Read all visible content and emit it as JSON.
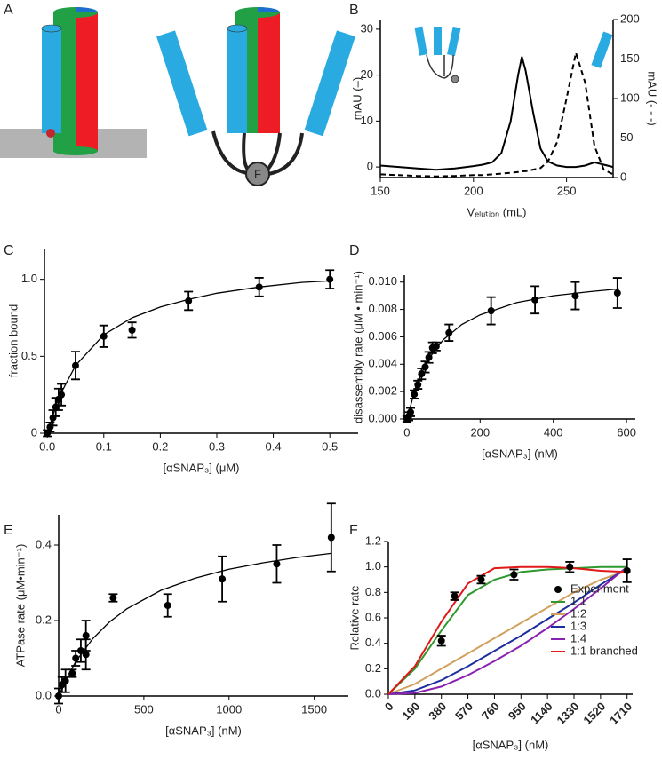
{
  "diagram": {
    "panel_label": "A",
    "node_label": "F"
  },
  "chart_data": [
    {
      "type": "line",
      "panel_label": "B",
      "x_label": "Vₑₗᵤₜᵢₒₙ (mL)",
      "y_label": "mAU (–)",
      "y2_label": "mAU (- - -)",
      "x": [
        150,
        160,
        170,
        180,
        190,
        200,
        205,
        210,
        215,
        220,
        224,
        226,
        228,
        232,
        236,
        240,
        245,
        250,
        255,
        260,
        265,
        270,
        275
      ],
      "series": [
        {
          "color": "#000",
          "values": [
            0.3,
            0,
            -0.3,
            -0.6,
            -0.3,
            0.2,
            0.5,
            1,
            3,
            10,
            20,
            24,
            21,
            12,
            4,
            1.2,
            0.3,
            0,
            0,
            0.3,
            1,
            0.5,
            0
          ]
        },
        {
          "color": "#000",
          "axis": "y2",
          "dashed": true,
          "values": [
            4,
            3,
            2,
            1.5,
            2,
            3,
            3,
            4,
            5,
            6,
            7,
            8,
            8,
            10,
            12,
            20,
            45,
            100,
            158,
            120,
            40,
            10,
            4
          ]
        }
      ],
      "xlim": [
        150,
        275
      ],
      "xticks": [
        150,
        200,
        250
      ],
      "ylim": [
        -2.3,
        32.1
      ],
      "yticks": [
        0,
        10,
        20,
        30
      ],
      "y2lim": [
        0,
        200
      ],
      "y2ticks": [
        0,
        50,
        100,
        150,
        200
      ]
    },
    {
      "type": "scatter",
      "panel_label": "C",
      "x_label": "[αSNAP₃] (μM)",
      "y_label": "fraction bound",
      "points": {
        "color": "#000",
        "x": [
          0,
          0.005,
          0.01,
          0.015,
          0.02,
          0.025,
          0.05,
          0.1,
          0.15,
          0.25,
          0.375,
          0.5
        ],
        "y": [
          0,
          0.04,
          0.1,
          0.17,
          0.22,
          0.25,
          0.44,
          0.63,
          0.67,
          0.86,
          0.95,
          1.0
        ],
        "err": [
          0.02,
          0.03,
          0.05,
          0.06,
          0.07,
          0.07,
          0.09,
          0.07,
          0.05,
          0.06,
          0.06,
          0.06
        ]
      },
      "fit": {
        "color": "#000",
        "x": [
          0,
          0.02,
          0.05,
          0.1,
          0.15,
          0.2,
          0.25,
          0.3,
          0.375,
          0.45,
          0.5
        ],
        "y": [
          0,
          0.23,
          0.44,
          0.64,
          0.75,
          0.82,
          0.87,
          0.91,
          0.95,
          0.98,
          0.99
        ]
      },
      "xlim": [
        -0.005,
        0.55
      ],
      "xticks": [
        {
          "value": 0,
          "label": "0.0"
        },
        0.1,
        0.2,
        0.3,
        0.4,
        0.5
      ],
      "ylim": [
        0,
        1.2
      ],
      "yticks": [
        0,
        0.5,
        {
          "value": 1,
          "label": "1.0"
        }
      ]
    },
    {
      "type": "scatter",
      "panel_label": "D",
      "x_label": "[αSNAP₃] (nM)",
      "y_label": "disassembly rate (μM • min⁻¹)",
      "points": {
        "color": "#000",
        "x": [
          0,
          5,
          10,
          20,
          30,
          40,
          50,
          60,
          70,
          80,
          115,
          230,
          350,
          460,
          575
        ],
        "y": [
          0,
          0.0002,
          0.0005,
          0.0018,
          0.0025,
          0.0033,
          0.0038,
          0.0045,
          0.0052,
          0.0053,
          0.0063,
          0.0079,
          0.0087,
          0.009,
          0.0092
        ],
        "err": [
          0.0002,
          0.0003,
          0.0003,
          0.0003,
          0.0003,
          0.0004,
          0.0004,
          0.0004,
          0.0004,
          0.0003,
          0.0006,
          0.001,
          0.001,
          0.001,
          0.0011
        ]
      },
      "fit": {
        "color": "#000",
        "x": [
          0,
          25,
          50,
          75,
          100,
          150,
          200,
          300,
          400,
          500,
          580
        ],
        "y": [
          0,
          0.0024,
          0.0039,
          0.005,
          0.0058,
          0.0069,
          0.0076,
          0.0085,
          0.009,
          0.0093,
          0.0095
        ]
      },
      "xlim": [
        -7,
        624
      ],
      "xticks": [
        0,
        200,
        400,
        600
      ],
      "ylim": [
        0,
        0.0105
      ],
      "yticks": [
        {
          "value": 0,
          "label": "0.000"
        },
        {
          "value": 0.002,
          "label": "0.002"
        },
        {
          "value": 0.004,
          "label": "0.004"
        },
        {
          "value": 0.006,
          "label": "0.006"
        },
        {
          "value": 0.008,
          "label": "0.008"
        },
        {
          "value": 0.01,
          "label": "0.010"
        }
      ]
    },
    {
      "type": "scatter",
      "panel_label": "E",
      "x_label": "[αSNAP₃] (nM)",
      "y_label": "ATPase rate (μM•min⁻¹)",
      "points": {
        "color": "#000",
        "x": [
          0,
          20,
          40,
          80,
          100,
          130,
          160,
          160,
          320,
          640,
          960,
          1280,
          1600
        ],
        "y": [
          0,
          0.03,
          0.04,
          0.06,
          0.1,
          0.12,
          0.16,
          0.11,
          0.26,
          0.24,
          0.31,
          0.35,
          0.42
        ],
        "err": [
          0.02,
          0.02,
          0.03,
          0.01,
          0.02,
          0.03,
          0.04,
          0.04,
          0.01,
          0.03,
          0.06,
          0.05,
          0.09
        ]
      },
      "fit": {
        "color": "#000",
        "x": [
          0,
          50,
          100,
          200,
          300,
          400,
          600,
          800,
          1000,
          1200,
          1400,
          1600
        ],
        "y": [
          0,
          0.05,
          0.091,
          0.152,
          0.197,
          0.231,
          0.28,
          0.312,
          0.336,
          0.353,
          0.367,
          0.378
        ]
      },
      "xlim": [
        0,
        1700
      ],
      "xticks": [
        0,
        500,
        1000,
        1500
      ],
      "ylim": [
        0,
        0.48
      ],
      "yticks": [
        {
          "value": 0,
          "label": "0.0"
        },
        0.2,
        0.4
      ]
    },
    {
      "type": "line",
      "panel_label": "F",
      "x_label": "[αSNAP₃] (nM)",
      "y_label": "Relative rate",
      "legend": "lower right",
      "x": [
        0,
        190,
        380,
        570,
        760,
        950,
        1140,
        1330,
        1520,
        1710
      ],
      "points": {
        "name": "Experiment",
        "color": "#000",
        "x": [
          380,
          475,
          665,
          900,
          1300,
          1710
        ],
        "y": [
          0.42,
          0.77,
          0.9,
          0.94,
          1.0,
          0.97
        ],
        "err": [
          0.04,
          0.03,
          0.03,
          0.04,
          0.04,
          0.09
        ]
      },
      "series": [
        {
          "name": "1:1",
          "color": "#2e9a2e",
          "values": [
            0,
            0.2,
            0.5,
            0.78,
            0.9,
            0.96,
            0.98,
            0.99,
            1.0,
            1.0
          ]
        },
        {
          "name": "1:2",
          "color": "#d2a05e",
          "values": [
            0,
            0.08,
            0.2,
            0.32,
            0.44,
            0.56,
            0.68,
            0.8,
            0.9,
            0.97
          ]
        },
        {
          "name": "1:3",
          "color": "#1c2ea0",
          "values": [
            0,
            0.03,
            0.11,
            0.22,
            0.34,
            0.46,
            0.59,
            0.72,
            0.86,
            0.99
          ]
        },
        {
          "name": "1:4",
          "color": "#8a22b0",
          "values": [
            0,
            0.01,
            0.06,
            0.15,
            0.26,
            0.38,
            0.52,
            0.67,
            0.83,
            1.0
          ]
        },
        {
          "name": "1:1 branched",
          "color": "#e01818",
          "values": [
            0,
            0.22,
            0.57,
            0.87,
            0.99,
            1.0,
            1.0,
            0.99,
            0.97,
            0.96
          ]
        }
      ],
      "xlim": [
        0,
        1750
      ],
      "xticks": [
        0,
        190,
        380,
        570,
        760,
        950,
        1140,
        1330,
        1520,
        1710
      ],
      "ylim": [
        0,
        1.2
      ],
      "yticks": [
        {
          "value": 0,
          "label": "0.0"
        },
        0.2,
        0.4,
        0.6,
        0.8,
        {
          "value": 1,
          "label": "1.0"
        },
        1.2
      ]
    }
  ]
}
